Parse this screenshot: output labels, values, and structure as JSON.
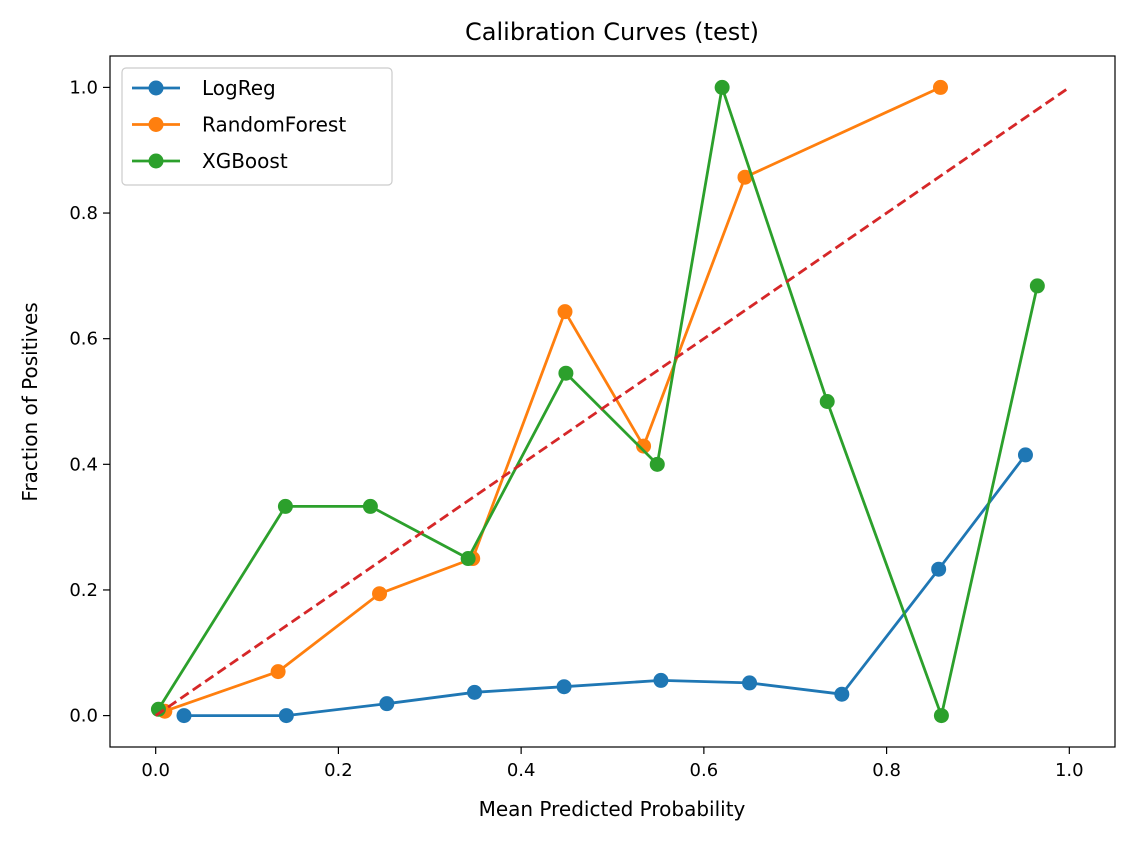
{
  "chart_data": {
    "type": "line",
    "title": "Calibration Curves (test)",
    "xlabel": "Mean Predicted Probability",
    "ylabel": "Fraction of Positives",
    "xlim": [
      -0.05,
      1.05
    ],
    "ylim": [
      -0.05,
      1.05
    ],
    "xticks": [
      0.0,
      0.2,
      0.4,
      0.6,
      0.8,
      1.0
    ],
    "yticks": [
      0.0,
      0.2,
      0.4,
      0.6,
      0.8,
      1.0
    ],
    "xtick_labels": [
      "0.0",
      "0.2",
      "0.4",
      "0.6",
      "0.8",
      "1.0"
    ],
    "ytick_labels": [
      "0.0",
      "0.2",
      "0.4",
      "0.6",
      "0.8",
      "1.0"
    ],
    "grid": false,
    "legend_position": "upper-left",
    "series": [
      {
        "name": "LogReg",
        "color": "#1f77b4",
        "marker": "circle",
        "x": [
          0.031,
          0.143,
          0.253,
          0.349,
          0.447,
          0.553,
          0.65,
          0.751,
          0.857,
          0.952
        ],
        "y": [
          0.0,
          0.0,
          0.019,
          0.037,
          0.046,
          0.056,
          0.052,
          0.034,
          0.233,
          0.415
        ]
      },
      {
        "name": "RandomForest",
        "color": "#ff7f0e",
        "marker": "circle",
        "x": [
          0.01,
          0.134,
          0.245,
          0.347,
          0.448,
          0.534,
          0.645,
          0.859
        ],
        "y": [
          0.007,
          0.07,
          0.194,
          0.25,
          0.643,
          0.429,
          0.857,
          1.0
        ]
      },
      {
        "name": "XGBoost",
        "color": "#2ca02c",
        "marker": "circle",
        "x": [
          0.003,
          0.142,
          0.235,
          0.342,
          0.449,
          0.549,
          0.62,
          0.735,
          0.86,
          0.965
        ],
        "y": [
          0.01,
          0.333,
          0.333,
          0.25,
          0.545,
          0.4,
          1.0,
          0.5,
          0.0,
          0.684
        ]
      }
    ],
    "reference_line": {
      "color": "#d62728",
      "style": "dashed",
      "x": [
        0.0,
        1.0
      ],
      "y": [
        0.0,
        1.0
      ]
    }
  }
}
